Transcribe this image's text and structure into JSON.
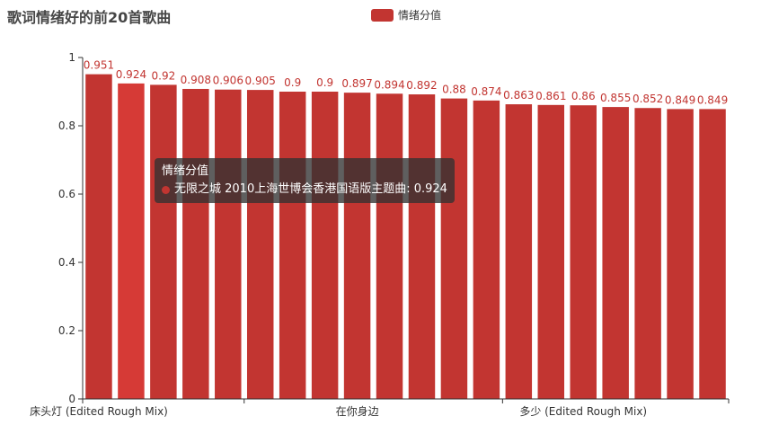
{
  "colors": {
    "bar": "#c23531",
    "bar_highlight": "#d63a36",
    "axis": "#333333",
    "label": "#c23531"
  },
  "chart_data": {
    "type": "bar",
    "title": "歌词情绪好的前20首歌曲",
    "legend": {
      "entries": [
        "情绪分值"
      ],
      "position": "top-center"
    },
    "ylim": [
      0,
      1
    ],
    "yticks": [
      0,
      0.2,
      0.4,
      0.6,
      0.8,
      1
    ],
    "visible_xtick_labels": [
      {
        "index": 0,
        "label": "床头灯 (Edited Rough Mix)"
      },
      {
        "index": 8,
        "label": "在你身边"
      },
      {
        "index": 15,
        "label": "多少 (Edited Rough Mix)"
      }
    ],
    "highlighted_index": 1,
    "series": [
      {
        "name": "情绪分值",
        "values": [
          0.951,
          0.924,
          0.92,
          0.908,
          0.906,
          0.905,
          0.9,
          0.9,
          0.897,
          0.894,
          0.892,
          0.88,
          0.874,
          0.863,
          0.861,
          0.86,
          0.855,
          0.852,
          0.849,
          0.849
        ]
      }
    ]
  },
  "tooltip": {
    "title": "情绪分值",
    "text": "无限之城 2010上海世博会香港国语版主题曲: 0.924"
  }
}
